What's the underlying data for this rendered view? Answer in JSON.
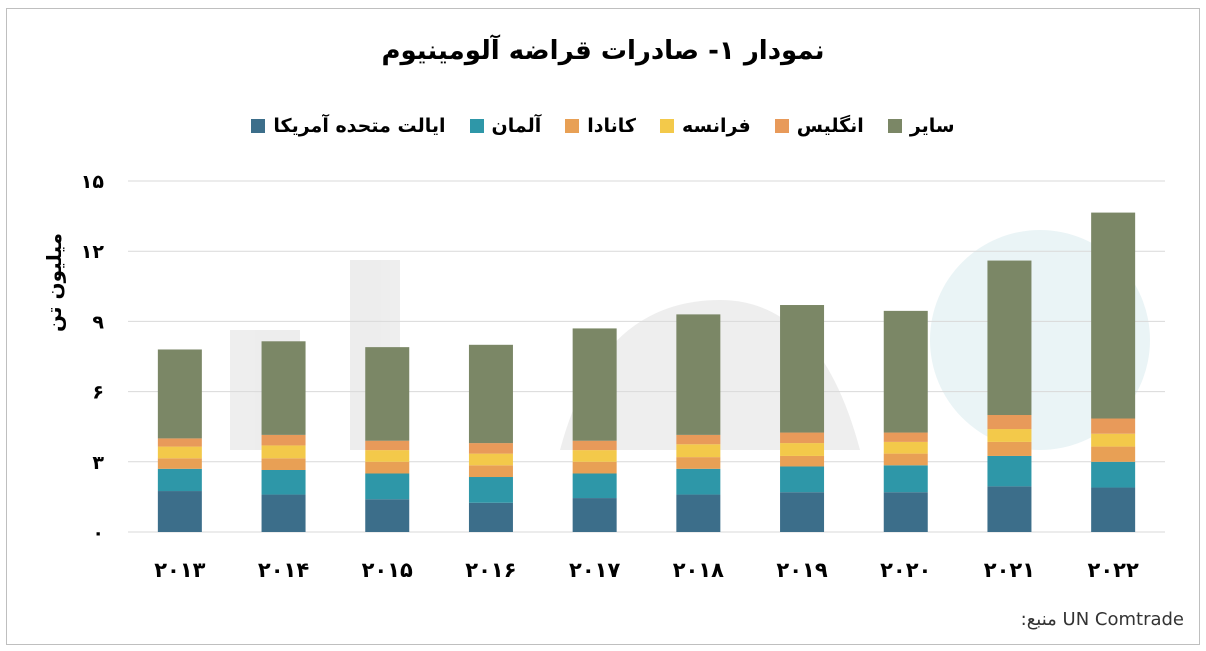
{
  "chart_data": {
    "type": "bar",
    "stacked": true,
    "title": "نمودار ۱- صادرات قراضه آلومینیوم",
    "ylabel": "میلیون تن",
    "xlabel": "",
    "ylim": [
      0,
      15
    ],
    "yticks": [
      0,
      3,
      6,
      9,
      12,
      15
    ],
    "ytick_labels": [
      "۰",
      "۳",
      "۶",
      "۹",
      "۱۲",
      "۱۵"
    ],
    "categories": [
      "۲۰۱۳",
      "۲۰۱۴",
      "۲۰۱۵",
      "۲۰۱۶",
      "۲۰۱۷",
      "۲۰۱۸",
      "۲۰۱۹",
      "۲۰۲۰",
      "۲۰۲۱",
      "۲۰۲۲"
    ],
    "legend_position": "top",
    "grid": true,
    "series": [
      {
        "name": "ایالت متحده آمریکا",
        "color": "#3c6e8a",
        "values": [
          1.75,
          1.6,
          1.4,
          1.25,
          1.45,
          1.6,
          1.7,
          1.7,
          1.95,
          1.9
        ]
      },
      {
        "name": "آلمان",
        "color": "#2e97a8",
        "values": [
          0.95,
          1.05,
          1.1,
          1.1,
          1.05,
          1.1,
          1.1,
          1.15,
          1.3,
          1.1
        ]
      },
      {
        "name": "کانادا",
        "color": "#e8a055",
        "values": [
          0.45,
          0.5,
          0.5,
          0.5,
          0.5,
          0.5,
          0.45,
          0.5,
          0.6,
          0.65
        ]
      },
      {
        "name": "فرانسه",
        "color": "#f3c94a",
        "values": [
          0.5,
          0.55,
          0.5,
          0.5,
          0.5,
          0.55,
          0.55,
          0.5,
          0.55,
          0.55
        ]
      },
      {
        "name": "انگلیس",
        "color": "#e89a5a",
        "values": [
          0.35,
          0.45,
          0.4,
          0.45,
          0.4,
          0.4,
          0.45,
          0.4,
          0.6,
          0.65
        ]
      },
      {
        "name": "سایر",
        "color": "#7b8766",
        "values": [
          3.8,
          4.0,
          4.0,
          4.2,
          4.8,
          5.15,
          5.45,
          5.2,
          6.6,
          8.8
        ]
      }
    ]
  },
  "source": {
    "label": "منبع:",
    "value": "UN Comtrade"
  },
  "colors": {
    "gridline": "#d9d9d9",
    "frame": "#bfbfbf",
    "watermark": "#2e97a8"
  }
}
